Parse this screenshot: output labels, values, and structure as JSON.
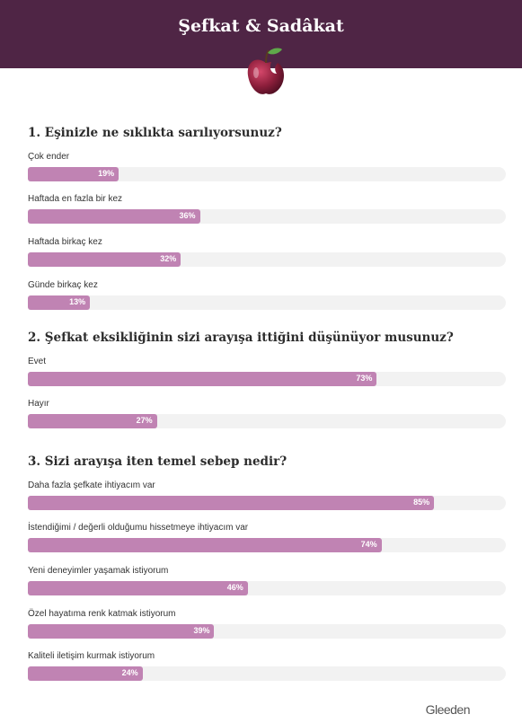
{
  "header": {
    "title": "Şefkat & Sadâkat"
  },
  "colors": {
    "header_bg": "#4f2545",
    "bar": "#c083b3",
    "track": "#f2f2f2"
  },
  "icons": {
    "header": "apple-icon"
  },
  "chart_data": [
    {
      "type": "bar",
      "title": "1. Eşinizle ne sıklıkta sarılıyorsunuz?",
      "categories": [
        "Çok ender",
        "Haftada en fazla bir kez",
        "Haftada birkaç kez",
        "Günde birkaç kez"
      ],
      "values": [
        19,
        36,
        32,
        13
      ],
      "unit": "%",
      "xlim": [
        0,
        100
      ]
    },
    {
      "type": "bar",
      "title": "2. Şefkat eksikliğinin sizi arayışa ittiğini düşünüyor musunuz?",
      "categories": [
        "Evet",
        "Hayır"
      ],
      "values": [
        73,
        27
      ],
      "unit": "%",
      "xlim": [
        0,
        100
      ]
    },
    {
      "type": "bar",
      "title": "3. Sizi arayışa iten temel sebep nedir?",
      "categories": [
        "Daha fazla şefkate ihtiyacım var",
        "İstendiğimi / değerli olduğumu hissetmeye ihtiyacım var",
        "Yeni deneyimler yaşamak istiyorum",
        "Özel hayatıma renk katmak istiyorum",
        "Kaliteli iletişim kurmak istiyorum"
      ],
      "values": [
        85,
        74,
        46,
        39,
        24
      ],
      "unit": "%",
      "xlim": [
        0,
        100
      ]
    }
  ],
  "footer": {
    "logo": "Gleeden"
  }
}
